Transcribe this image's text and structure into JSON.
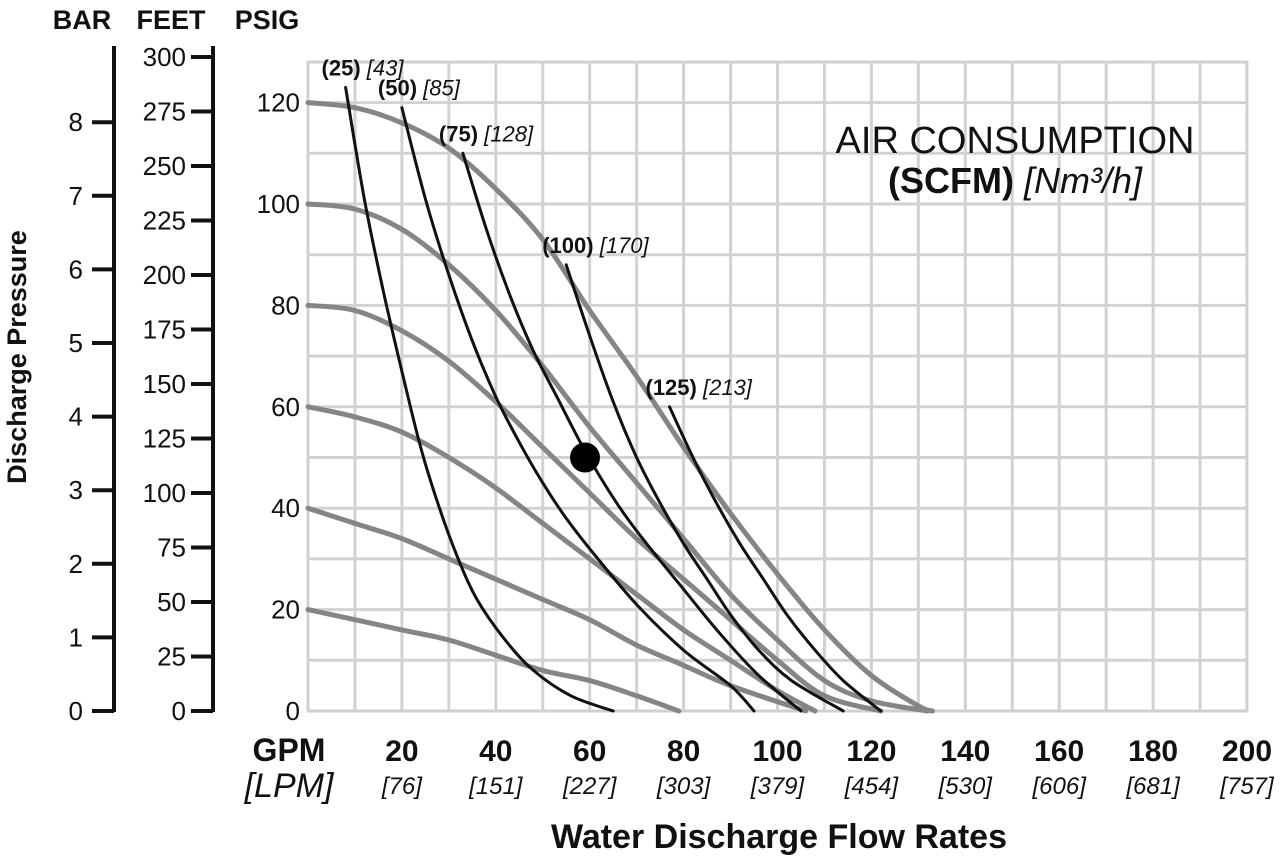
{
  "chart_data": {
    "type": "line",
    "title": "",
    "legend": {
      "line1": "AIR CONSUMPTION",
      "line2_bold": "(SCFM)",
      "line2_italic": "[Nm³/h]"
    },
    "xlabel": "Water Discharge Flow Rates",
    "ylabel": "Discharge Pressure",
    "x_unit_primary": "GPM",
    "x_unit_secondary": "[LPM]",
    "xlim": [
      0,
      200
    ],
    "x_ticks": [
      {
        "gpm": "20",
        "lpm": "[76]"
      },
      {
        "gpm": "40",
        "lpm": "[151]"
      },
      {
        "gpm": "60",
        "lpm": "[227]"
      },
      {
        "gpm": "80",
        "lpm": "[303]"
      },
      {
        "gpm": "100",
        "lpm": "[379]"
      },
      {
        "gpm": "120",
        "lpm": "[454]"
      },
      {
        "gpm": "140",
        "lpm": "[530]"
      },
      {
        "gpm": "160",
        "lpm": "[606]"
      },
      {
        "gpm": "180",
        "lpm": "[681]"
      },
      {
        "gpm": "200",
        "lpm": "[757]"
      }
    ],
    "ylim_psig": [
      0,
      128
    ],
    "y_axes": [
      {
        "unit": "BAR",
        "ticks": [
          "0",
          "1",
          "2",
          "3",
          "4",
          "5",
          "6",
          "7",
          "8"
        ],
        "values": [
          0,
          1,
          2,
          3,
          4,
          5,
          6,
          7,
          8
        ]
      },
      {
        "unit": "FEET",
        "ticks": [
          "0",
          "25",
          "50",
          "75",
          "100",
          "125",
          "150",
          "175",
          "200",
          "225",
          "250",
          "275",
          "300"
        ],
        "values": [
          0,
          25,
          50,
          75,
          100,
          125,
          150,
          175,
          200,
          225,
          250,
          275,
          300
        ]
      },
      {
        "unit": "PSIG",
        "ticks": [
          "0",
          "20",
          "40",
          "60",
          "80",
          "100",
          "120"
        ],
        "values": [
          0,
          20,
          40,
          60,
          80,
          100,
          120
        ]
      }
    ],
    "grid": true,
    "series": [
      {
        "kind": "performance",
        "x": [
          0,
          10,
          20,
          30,
          40,
          50,
          60,
          70,
          80,
          90,
          100,
          110,
          120,
          130,
          133
        ],
        "y": [
          120,
          119,
          116,
          111,
          103,
          93,
          79,
          66,
          52,
          39,
          27,
          16,
          7,
          1,
          0
        ]
      },
      {
        "kind": "performance",
        "x": [
          0,
          10,
          20,
          30,
          40,
          50,
          60,
          70,
          80,
          90,
          100,
          110,
          120,
          132
        ],
        "y": [
          100,
          99,
          95,
          88,
          79,
          68,
          56,
          45,
          34,
          23,
          14,
          6,
          2,
          0
        ]
      },
      {
        "kind": "performance",
        "x": [
          0,
          10,
          20,
          30,
          40,
          50,
          60,
          70,
          80,
          90,
          100,
          110,
          122
        ],
        "y": [
          80,
          79,
          75,
          69,
          61,
          52,
          43,
          34,
          26,
          18,
          10,
          3,
          0
        ]
      },
      {
        "kind": "performance",
        "x": [
          0,
          10,
          20,
          30,
          40,
          50,
          60,
          70,
          80,
          90,
          100,
          108
        ],
        "y": [
          60,
          58,
          55,
          50,
          44,
          37,
          30,
          23,
          16,
          10,
          4,
          0
        ]
      },
      {
        "kind": "performance",
        "x": [
          0,
          10,
          20,
          30,
          40,
          50,
          60,
          70,
          80,
          90,
          106
        ],
        "y": [
          40,
          37,
          34,
          30,
          26,
          22,
          18,
          13,
          9,
          5,
          0
        ]
      },
      {
        "kind": "performance",
        "x": [
          0,
          10,
          20,
          30,
          40,
          50,
          60,
          70,
          79
        ],
        "y": [
          20,
          18,
          16,
          14,
          11,
          8,
          6,
          3,
          0
        ]
      },
      {
        "kind": "air",
        "label": "(25)",
        "label_metric": "[43]",
        "x": [
          8,
          12,
          16,
          20,
          24,
          28,
          32,
          36,
          42,
          48,
          56,
          65
        ],
        "y": [
          123,
          101,
          83,
          67,
          52,
          40,
          30,
          22,
          14,
          8,
          3,
          0
        ]
      },
      {
        "kind": "air",
        "label": "(50)",
        "label_metric": "[85]",
        "x": [
          20,
          25,
          30,
          35,
          40,
          45,
          50,
          55,
          60,
          70,
          80,
          90,
          95
        ],
        "y": [
          119,
          101,
          86,
          73,
          62,
          53,
          45,
          38,
          32,
          21,
          12,
          5,
          0
        ]
      },
      {
        "kind": "air",
        "label": "(75)",
        "label_metric": "[128]",
        "x": [
          33,
          38,
          43,
          48,
          53,
          58,
          63,
          68,
          73,
          80,
          88,
          96,
          105
        ],
        "y": [
          110,
          95,
          82,
          71,
          62,
          53,
          45,
          38,
          32,
          24,
          15,
          7,
          0
        ]
      },
      {
        "kind": "air",
        "label": "(100)",
        "label_metric": "[170]",
        "x": [
          55,
          60,
          65,
          70,
          75,
          80,
          85,
          90,
          96,
          103,
          114
        ],
        "y": [
          88,
          74,
          61,
          50,
          41,
          33,
          26,
          19,
          12,
          6,
          0
        ]
      },
      {
        "kind": "air",
        "label": "(125)",
        "label_metric": "[213]",
        "x": [
          77,
          82,
          87,
          92,
          97,
          102,
          108,
          114,
          122
        ],
        "y": [
          60,
          50,
          41,
          33,
          26,
          19,
          12,
          6,
          0
        ]
      }
    ],
    "highlight_point": {
      "x": 59,
      "y": 50
    }
  }
}
